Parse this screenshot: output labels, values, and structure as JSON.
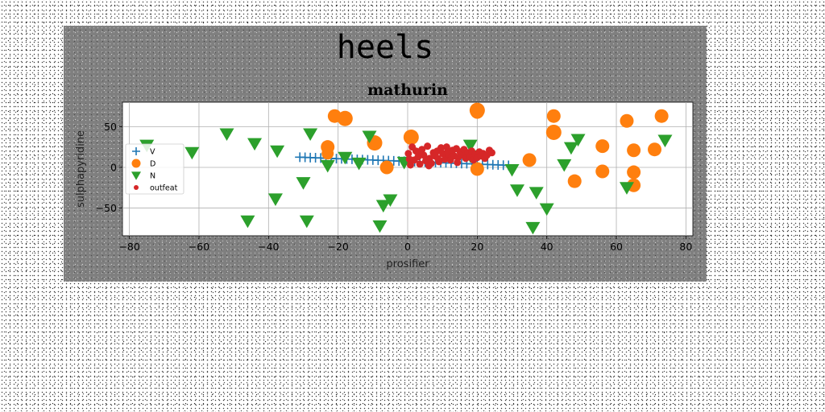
{
  "figure": {
    "suptitle": "heels"
  },
  "chart_data": {
    "type": "scatter",
    "title": "mathurin",
    "xlabel": "prosifier",
    "ylabel": "sulphapyridine",
    "xlim": [
      -82,
      82
    ],
    "ylim": [
      -84,
      80
    ],
    "xticks": [
      -80,
      -60,
      -40,
      -20,
      0,
      20,
      40,
      60,
      80
    ],
    "yticks": [
      -50,
      0,
      50
    ],
    "grid": true,
    "legend_position": "center-left",
    "series": [
      {
        "name": "V",
        "marker": "plus",
        "color": "#1f77b4",
        "x": [
          -31,
          -29.5,
          -28,
          -26.5,
          -25,
          -23.5,
          -22,
          -20.5,
          -19,
          -17.5,
          -16,
          -14.5,
          -13,
          -11.5,
          -10,
          -8.5,
          -7,
          -5.5,
          -4,
          -2.5,
          -1,
          0.5,
          2,
          3.5,
          5,
          6.5,
          8,
          9.5,
          11,
          12.5,
          14,
          15.5,
          17,
          18.5,
          20,
          21.5,
          23,
          24.5,
          26,
          27.5,
          29
        ],
        "y": [
          12.5,
          12.3,
          12.0,
          11.8,
          11.5,
          11.2,
          11.0,
          10.7,
          10.5,
          10.2,
          10.0,
          9.7,
          9.5,
          9.2,
          9.0,
          8.7,
          8.5,
          8.2,
          8.0,
          7.7,
          7.5,
          7.2,
          7.0,
          6.7,
          6.5,
          6.2,
          6.0,
          5.7,
          5.5,
          5.2,
          5.0,
          4.7,
          4.5,
          4.2,
          4.0,
          3.7,
          3.5,
          3.2,
          3.0,
          2.7,
          2.5
        ]
      },
      {
        "name": "D",
        "marker": "circle",
        "color": "#ff7f0e",
        "x": [
          -21,
          -18,
          -23,
          -23,
          -9.5,
          -6,
          1,
          20,
          20,
          35,
          42,
          42,
          48,
          56,
          56,
          63,
          65,
          65,
          65,
          71,
          73,
          20
        ],
        "y": [
          63,
          60,
          25,
          17,
          30,
          0,
          37,
          70,
          68,
          9,
          63,
          43,
          -17,
          26,
          -5,
          57,
          21,
          -6,
          -22,
          22,
          63,
          -2
        ],
        "sizes": [
          17,
          19,
          17,
          15,
          19,
          17,
          19,
          19,
          17,
          17,
          17,
          19,
          17,
          17,
          17,
          17,
          17,
          17,
          17,
          17,
          17,
          17
        ]
      },
      {
        "name": "N",
        "marker": "triangle-down",
        "color": "#2ca02c",
        "x": [
          -75,
          -62,
          -52,
          -44,
          -46,
          -37.5,
          -38,
          -30,
          -29,
          -28,
          -23,
          -18,
          -14,
          -11,
          -8,
          -7,
          -5,
          -1,
          18,
          18,
          30,
          31.5,
          37,
          36,
          40,
          45,
          47,
          49,
          63,
          74
        ],
        "y": [
          27,
          18,
          41,
          29,
          -66,
          20,
          -39,
          -19,
          -66,
          41,
          2,
          12,
          5,
          38,
          -72,
          -47,
          -40,
          6,
          27,
          14,
          -3,
          -28,
          -31,
          -74,
          -51,
          3,
          24,
          34,
          -25,
          33
        ]
      },
      {
        "name": "outfeat",
        "marker": "circle-small",
        "color": "#d62728",
        "x": [
          0.2,
          0.8,
          1.3,
          1.9,
          2.4,
          3.0,
          3.5,
          4.1,
          4.6,
          5.2,
          5.7,
          6.3,
          6.8,
          7.4,
          7.9,
          8.5,
          9.0,
          9.6,
          10.1,
          10.7,
          11.2,
          11.8,
          12.3,
          12.9,
          13.4,
          14.0,
          14.5,
          15.1,
          15.6,
          16.2,
          16.7,
          17.3,
          17.8,
          18.4,
          18.9,
          19.5,
          20.0,
          20.6,
          21.1,
          21.7,
          22.2,
          22.8,
          23.5,
          24.2,
          0.5,
          3.2,
          6.1,
          8.7,
          11.5,
          14.3
        ],
        "y": [
          17,
          3,
          25,
          9,
          20,
          13,
          4,
          22,
          15,
          8,
          26,
          11,
          5,
          18,
          14,
          20,
          7,
          24,
          17,
          10,
          25,
          16,
          9,
          21,
          14,
          23,
          12,
          19,
          15,
          22,
          11,
          18,
          13,
          20,
          9,
          16,
          12,
          19,
          14,
          17,
          11,
          15,
          21,
          18,
          10,
          18,
          2,
          11,
          19,
          6
        ]
      }
    ]
  }
}
